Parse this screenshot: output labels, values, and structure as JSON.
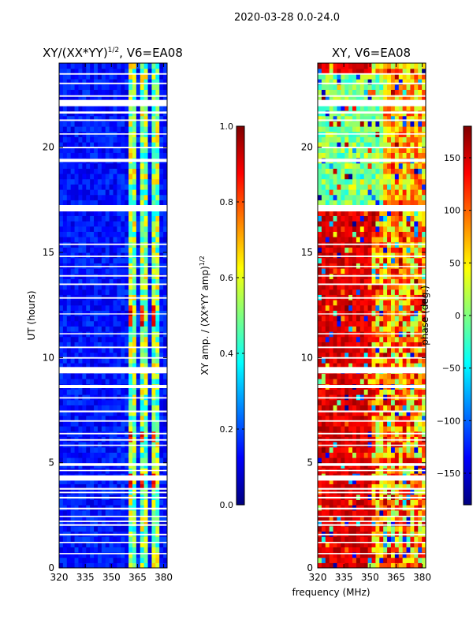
{
  "suptitle": "2020-03-28 0.0-24.0",
  "xlabel_shared": "frequency (MHz)",
  "colormap": [
    "#00007f",
    "#0000ff",
    "#007fff",
    "#00ffff",
    "#7fff7f",
    "#ffff00",
    "#ff7f00",
    "#ff0000",
    "#7f0000"
  ],
  "chart_data": [
    {
      "type": "heatmap",
      "title_main": "XY/(XX*YY)",
      "title_sup": "1/2",
      "title_tail": ", V6=EA08",
      "xlabel": "",
      "ylabel": "UT (hours)",
      "xlim": [
        320,
        382
      ],
      "ylim": [
        0,
        24
      ],
      "x_ticks": [
        320,
        335,
        350,
        365,
        380
      ],
      "y_ticks": [
        0,
        5,
        10,
        15,
        20
      ],
      "colorbar": {
        "label_main": "XY amp. / (XX*YY amp)",
        "label_sup": "1/2",
        "range": [
          0.0,
          1.0
        ],
        "ticks": [
          "0.0",
          "0.2",
          "0.4",
          "0.6",
          "0.8",
          "1.0"
        ]
      }
    },
    {
      "type": "heatmap",
      "title_main": "XY, V6=EA08",
      "xlabel": "frequency (MHz)",
      "ylabel": "",
      "xlim": [
        320,
        382
      ],
      "ylim": [
        0,
        24
      ],
      "x_ticks": [
        320,
        335,
        350,
        365,
        380
      ],
      "y_ticks": [
        0,
        5,
        10,
        15,
        20
      ],
      "colorbar": {
        "label_main": "phase (deg.)",
        "range": [
          -180,
          180
        ],
        "ticks": [
          "−150",
          "−100",
          "−50",
          "0",
          "50",
          "100",
          "150"
        ]
      }
    }
  ],
  "flag_bands_hours": [
    [
      0.65,
      0.71
    ],
    [
      1.18,
      1.24
    ],
    [
      1.55,
      1.62
    ],
    [
      2.0,
      2.08
    ],
    [
      2.18,
      2.25
    ],
    [
      2.42,
      2.48
    ],
    [
      2.78,
      2.86
    ],
    [
      3.3,
      3.38
    ],
    [
      3.55,
      3.62
    ],
    [
      3.72,
      3.8
    ],
    [
      4.15,
      4.4
    ],
    [
      4.6,
      4.66
    ],
    [
      4.85,
      4.98
    ],
    [
      5.8,
      5.86
    ],
    [
      6.05,
      6.12
    ],
    [
      6.35,
      6.42
    ],
    [
      6.95,
      7.02
    ],
    [
      7.4,
      7.48
    ],
    [
      8.05,
      8.12
    ],
    [
      8.55,
      8.7
    ],
    [
      9.25,
      9.55
    ],
    [
      9.95,
      10.02
    ],
    [
      10.45,
      10.52
    ],
    [
      11.1,
      11.16
    ],
    [
      12.05,
      12.1
    ],
    [
      12.8,
      12.87
    ],
    [
      13.45,
      13.52
    ],
    [
      13.85,
      13.92
    ],
    [
      14.3,
      14.36
    ],
    [
      14.78,
      14.85
    ],
    [
      15.35,
      15.42
    ],
    [
      16.95,
      17.25
    ],
    [
      19.3,
      19.45
    ],
    [
      19.95,
      20.02
    ],
    [
      20.6,
      20.66
    ],
    [
      21.25,
      21.32
    ],
    [
      21.6,
      21.7
    ],
    [
      21.95,
      22.25
    ],
    [
      22.4,
      22.47
    ],
    [
      23.0,
      23.07
    ],
    [
      23.45,
      23.52
    ]
  ]
}
